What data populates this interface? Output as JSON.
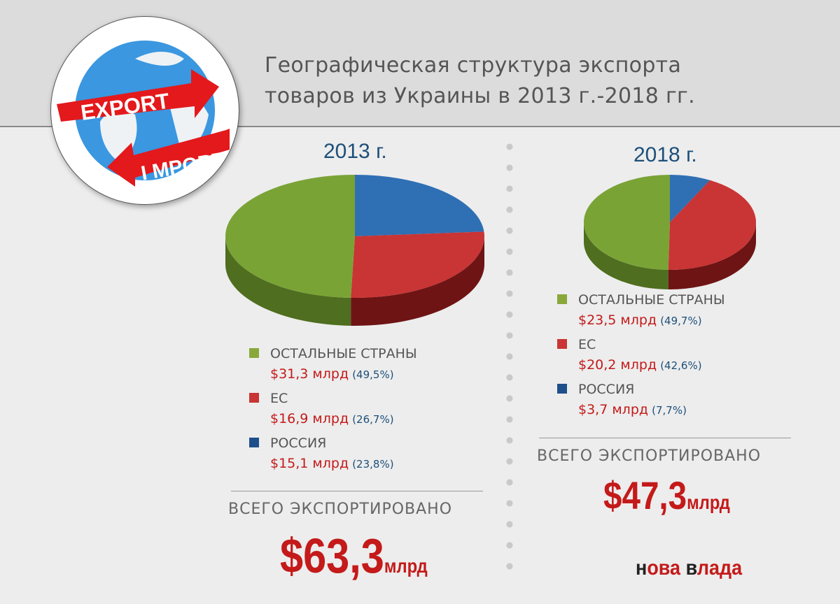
{
  "title_line1": "Географическая структура экспорта",
  "title_line2": "товаров из Украины в 2013 г.-2018 гг.",
  "logo": {
    "export": "EXPORT",
    "import": "I MPORT"
  },
  "brand": {
    "part1": "н",
    "part2": "ова ",
    "part3": "в",
    "part4": "лада"
  },
  "colors": {
    "others": "#7aa336",
    "eu": "#c93434",
    "russia": "#2f6fb4",
    "accent": "#c41a1a"
  },
  "chart_data": [
    {
      "type": "pie",
      "title": "2013 г.",
      "categories": [
        "ОСТАЛЬНЫЕ СТРАНЫ",
        "ЕС",
        "РОССИЯ"
      ],
      "values": [
        31.3,
        16.9,
        15.1
      ],
      "percent": [
        49.5,
        26.7,
        23.8
      ],
      "labels": [
        "$31,3 млрд",
        "$16,9 млрд",
        "$15,1 млрд"
      ],
      "percent_labels": [
        "(49,5%)",
        "(26,7%)",
        "(23,8%)"
      ],
      "total_label": "ВСЕГО ЭКСПОРТИРОВАНО",
      "total": "$63,3",
      "total_unit": "млрд"
    },
    {
      "type": "pie",
      "title": "2018 г.",
      "categories": [
        "ОСТАЛЬНЫЕ СТРАНЫ",
        "ЕС",
        "РОССИЯ"
      ],
      "values": [
        23.5,
        20.2,
        3.7
      ],
      "percent": [
        49.7,
        42.6,
        7.7
      ],
      "labels": [
        "$23,5 млрд",
        "$20,2 млрд",
        "$3,7 млрд"
      ],
      "percent_labels": [
        "(49,7%)",
        "(42,6%)",
        "(7,7%)"
      ],
      "total_label": "ВСЕГО ЭКСПОРТИРОВАНО",
      "total": "$47,3",
      "total_unit": "млрд"
    }
  ]
}
